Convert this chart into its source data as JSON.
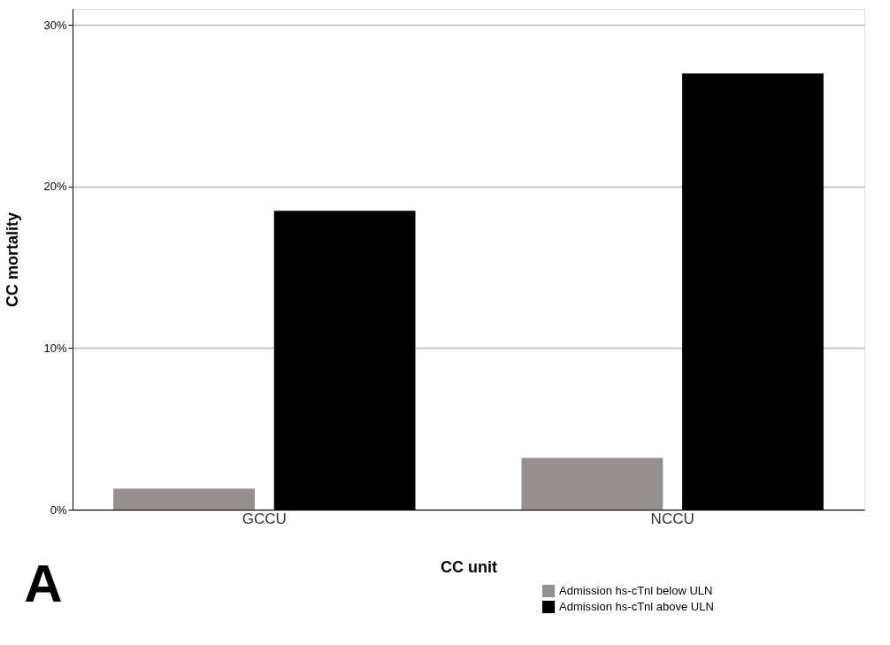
{
  "chart_data": {
    "type": "bar",
    "xlabel": "CC unit",
    "ylabel": "CC mortality",
    "categories": [
      "GCCU",
      "NCCU"
    ],
    "series": [
      {
        "name": "Admission hs-cTnl below ULN",
        "color": "#958f8d",
        "values": [
          1.3,
          3.2
        ]
      },
      {
        "name": "Admission hs-cTnl above ULN",
        "color": "#000000",
        "values": [
          18.5,
          27.0
        ]
      }
    ],
    "ylim": [
      0,
      31
    ],
    "yticks": [
      {
        "value": 0,
        "label": "0%"
      },
      {
        "value": 10,
        "label": "10%"
      },
      {
        "value": 20,
        "label": "20%"
      },
      {
        "value": 30,
        "label": "30%"
      }
    ],
    "grid": "y",
    "legend": "bottom right",
    "annotations": [
      "A"
    ]
  }
}
